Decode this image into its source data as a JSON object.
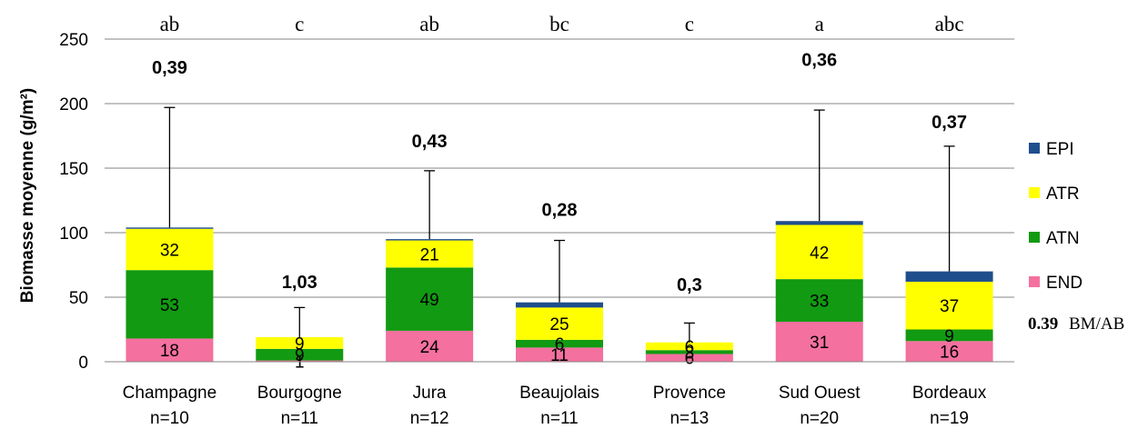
{
  "chart_data": {
    "type": "bar",
    "stacked": true,
    "ylabel": "Biomasse moyenne (g/m²)",
    "ylim": [
      0,
      250
    ],
    "yticks": [
      "0",
      "50",
      "100",
      "150",
      "200",
      "250"
    ],
    "grid": true,
    "legend_position": "right",
    "categories": [
      "Champagne",
      "Bourgogne",
      "Jura",
      "Beaujolais",
      "Provence",
      "Sud Ouest",
      "Bordeaux"
    ],
    "sample_sizes": [
      "n=10",
      "n=11",
      "n=12",
      "n=11",
      "n=13",
      "n=20",
      "n=19"
    ],
    "significance_letters": [
      "ab",
      "c",
      "ab",
      "bc",
      "c",
      "a",
      "abc"
    ],
    "ratio_labels": [
      "0,39",
      "1,03",
      "0,43",
      "0,28",
      "0,3",
      "0,36",
      "0,37"
    ],
    "ratio_positions": [
      228,
      62,
      171,
      118,
      60,
      234,
      186
    ],
    "error_bar_top": [
      197,
      42,
      148,
      94,
      30,
      195,
      167
    ],
    "series": [
      {
        "name": "END",
        "color": "#f4709f",
        "values": [
          18,
          1,
          24,
          11,
          6,
          31,
          16
        ],
        "labels": [
          "18",
          "1",
          "24",
          "11",
          "6",
          "31",
          "16"
        ]
      },
      {
        "name": "ATN",
        "color": "#129a12",
        "values": [
          53,
          9,
          49,
          6,
          3,
          33,
          9
        ],
        "labels": [
          "53",
          "9",
          "49",
          "6",
          "3",
          "33",
          "9"
        ]
      },
      {
        "name": "ATR",
        "color": "#ffff00",
        "values": [
          32,
          9,
          21,
          25,
          6,
          42,
          37
        ],
        "labels": [
          "32",
          "9",
          "21",
          "25",
          "6",
          "42",
          "37"
        ]
      },
      {
        "name": "EPI",
        "color": "#1f4e8c",
        "values": [
          1,
          0,
          1,
          4,
          0,
          3,
          8
        ],
        "labels": [
          "",
          "",
          "",
          "",
          "",
          "",
          ""
        ]
      }
    ],
    "legend_order": [
      "EPI",
      "ATR",
      "ATN",
      "END"
    ],
    "note": {
      "value": "0.39",
      "text": "BM/AB"
    }
  }
}
